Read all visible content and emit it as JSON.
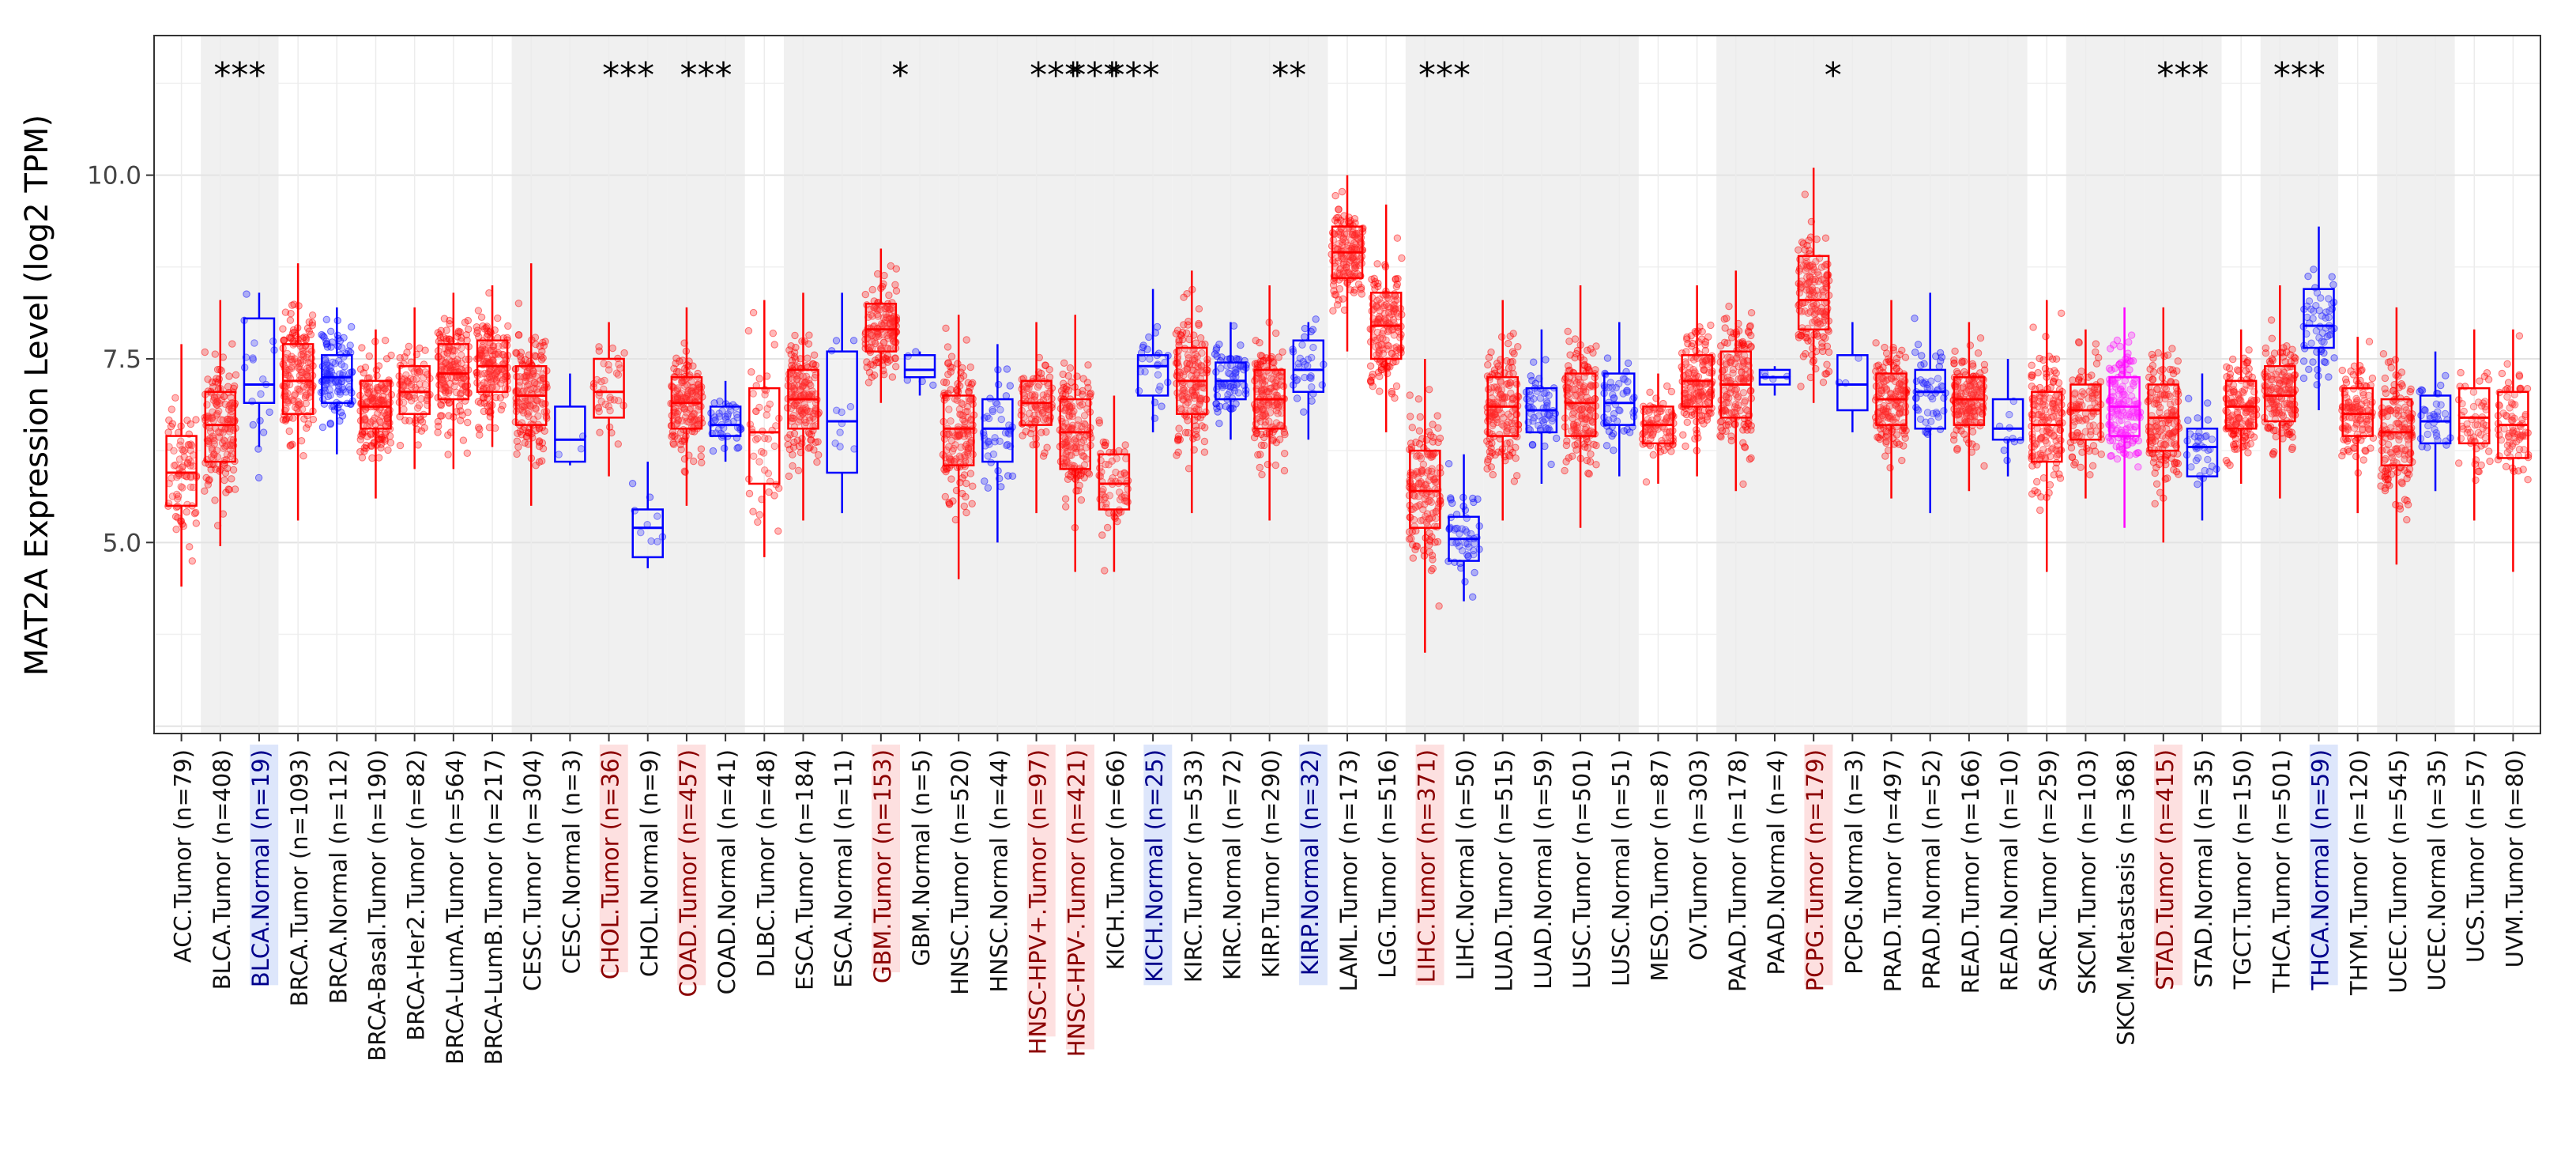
{
  "chart_data": {
    "type": "boxplot",
    "title": "",
    "ylabel": "MAT2A Expression Level (log2 TPM)",
    "xlabel": "",
    "ylim": [
      2.4,
      11.9
    ],
    "yticks": [
      5.0,
      7.5,
      10.0
    ],
    "ytick_labels": [
      "5.0",
      "7.5",
      "10.0"
    ],
    "grid": true,
    "colors": {
      "tumor": "#ff0000",
      "normal": "#0000ff",
      "metastasis": "#ff00ff",
      "shade": "#f0f0f0",
      "highlight_tumor": "#fde0e0",
      "highlight_normal": "#dde6fb",
      "label_red": "#8b0000",
      "label_blue": "#00008b"
    },
    "categories": [
      {
        "label": "ACC.Tumor (n=79)",
        "kind": "tumor",
        "n": 79,
        "q1": 5.5,
        "median": 5.95,
        "q3": 6.45,
        "wlo": 4.4,
        "whi": 7.7,
        "sig": "",
        "hl": ""
      },
      {
        "label": "BLCA.Tumor (n=408)",
        "kind": "tumor",
        "n": 408,
        "q1": 6.1,
        "median": 6.6,
        "q3": 7.05,
        "wlo": 4.95,
        "whi": 8.3,
        "sig": "***",
        "hl": ""
      },
      {
        "label": "BLCA.Normal (n=19)",
        "kind": "normal",
        "n": 19,
        "q1": 6.9,
        "median": 7.15,
        "q3": 8.05,
        "wlo": 6.3,
        "whi": 8.4,
        "sig": "",
        "hl": "normal"
      },
      {
        "label": "BRCA.Tumor (n=1093)",
        "kind": "tumor",
        "n": 1093,
        "q1": 6.75,
        "median": 7.2,
        "q3": 7.7,
        "wlo": 5.3,
        "whi": 8.8,
        "sig": "",
        "hl": ""
      },
      {
        "label": "BRCA.Normal (n=112)",
        "kind": "normal",
        "n": 112,
        "q1": 6.9,
        "median": 7.25,
        "q3": 7.55,
        "wlo": 6.2,
        "whi": 8.2,
        "sig": "",
        "hl": ""
      },
      {
        "label": "BRCA-Basal.Tumor (n=190)",
        "kind": "tumor",
        "n": 190,
        "q1": 6.55,
        "median": 6.85,
        "q3": 7.2,
        "wlo": 5.6,
        "whi": 7.9,
        "sig": "",
        "hl": ""
      },
      {
        "label": "BRCA-Her2.Tumor (n=82)",
        "kind": "tumor",
        "n": 82,
        "q1": 6.75,
        "median": 7.05,
        "q3": 7.4,
        "wlo": 6.0,
        "whi": 8.2,
        "sig": "",
        "hl": ""
      },
      {
        "label": "BRCA-LumA.Tumor (n=564)",
        "kind": "tumor",
        "n": 564,
        "q1": 6.95,
        "median": 7.3,
        "q3": 7.7,
        "wlo": 6.0,
        "whi": 8.4,
        "sig": "",
        "hl": ""
      },
      {
        "label": "BRCA-LumB.Tumor (n=217)",
        "kind": "tumor",
        "n": 217,
        "q1": 7.05,
        "median": 7.4,
        "q3": 7.75,
        "wlo": 6.3,
        "whi": 8.5,
        "sig": "",
        "hl": ""
      },
      {
        "label": "CESC.Tumor (n=304)",
        "kind": "tumor",
        "n": 304,
        "q1": 6.6,
        "median": 7.0,
        "q3": 7.4,
        "wlo": 5.5,
        "whi": 8.8,
        "sig": "",
        "hl": ""
      },
      {
        "label": "CESC.Normal (n=3)",
        "kind": "normal",
        "n": 3,
        "q1": 6.1,
        "median": 6.4,
        "q3": 6.85,
        "wlo": 6.05,
        "whi": 7.3,
        "sig": "",
        "hl": ""
      },
      {
        "label": "CHOL.Tumor (n=36)",
        "kind": "tumor",
        "n": 36,
        "q1": 6.7,
        "median": 7.05,
        "q3": 7.5,
        "wlo": 5.9,
        "whi": 8.0,
        "sig": "***",
        "hl": "tumor"
      },
      {
        "label": "CHOL.Normal (n=9)",
        "kind": "normal",
        "n": 9,
        "q1": 4.8,
        "median": 5.2,
        "q3": 5.45,
        "wlo": 4.65,
        "whi": 6.1,
        "sig": "",
        "hl": ""
      },
      {
        "label": "COAD.Tumor (n=457)",
        "kind": "tumor",
        "n": 457,
        "q1": 6.55,
        "median": 6.9,
        "q3": 7.25,
        "wlo": 5.5,
        "whi": 8.2,
        "sig": "***",
        "hl": "tumor"
      },
      {
        "label": "COAD.Normal (n=41)",
        "kind": "normal",
        "n": 41,
        "q1": 6.45,
        "median": 6.6,
        "q3": 6.85,
        "wlo": 6.1,
        "whi": 7.2,
        "sig": "",
        "hl": ""
      },
      {
        "label": "DLBC.Tumor (n=48)",
        "kind": "tumor",
        "n": 48,
        "q1": 5.8,
        "median": 6.5,
        "q3": 7.1,
        "wlo": 4.8,
        "whi": 8.3,
        "sig": "",
        "hl": ""
      },
      {
        "label": "ESCA.Tumor (n=184)",
        "kind": "tumor",
        "n": 184,
        "q1": 6.55,
        "median": 6.95,
        "q3": 7.35,
        "wlo": 5.3,
        "whi": 8.4,
        "sig": "",
        "hl": ""
      },
      {
        "label": "ESCA.Normal (n=11)",
        "kind": "normal",
        "n": 11,
        "q1": 5.95,
        "median": 6.65,
        "q3": 7.6,
        "wlo": 5.4,
        "whi": 8.4,
        "sig": "",
        "hl": ""
      },
      {
        "label": "GBM.Tumor (n=153)",
        "kind": "tumor",
        "n": 153,
        "q1": 7.6,
        "median": 7.9,
        "q3": 8.25,
        "wlo": 6.9,
        "whi": 9.0,
        "sig": "*",
        "hl": "tumor"
      },
      {
        "label": "GBM.Normal (n=5)",
        "kind": "normal",
        "n": 5,
        "q1": 7.25,
        "median": 7.35,
        "q3": 7.55,
        "wlo": 7.0,
        "whi": 7.6,
        "sig": "",
        "hl": ""
      },
      {
        "label": "HNSC.Tumor (n=520)",
        "kind": "tumor",
        "n": 520,
        "q1": 6.05,
        "median": 6.55,
        "q3": 7.0,
        "wlo": 4.5,
        "whi": 8.1,
        "sig": "",
        "hl": ""
      },
      {
        "label": "HNSC.Normal (n=44)",
        "kind": "normal",
        "n": 44,
        "q1": 6.1,
        "median": 6.55,
        "q3": 6.95,
        "wlo": 5.0,
        "whi": 7.7,
        "sig": "",
        "hl": ""
      },
      {
        "label": "HNSC-HPV+.Tumor (n=97)",
        "kind": "tumor",
        "n": 97,
        "q1": 6.6,
        "median": 6.9,
        "q3": 7.2,
        "wlo": 5.4,
        "whi": 8.0,
        "sig": "***",
        "hl": "tumor"
      },
      {
        "label": "HNSC-HPV-.Tumor (n=421)",
        "kind": "tumor",
        "n": 421,
        "q1": 6.0,
        "median": 6.5,
        "q3": 6.95,
        "wlo": 4.6,
        "whi": 8.1,
        "sig": "***",
        "hl": "tumor"
      },
      {
        "label": "KICH.Tumor (n=66)",
        "kind": "tumor",
        "n": 66,
        "q1": 5.45,
        "median": 5.8,
        "q3": 6.2,
        "wlo": 4.6,
        "whi": 7.0,
        "sig": "***",
        "hl": ""
      },
      {
        "label": "KICH.Normal (n=25)",
        "kind": "normal",
        "n": 25,
        "q1": 7.0,
        "median": 7.4,
        "q3": 7.55,
        "wlo": 6.5,
        "whi": 8.45,
        "sig": "",
        "hl": "normal"
      },
      {
        "label": "KIRC.Tumor (n=533)",
        "kind": "tumor",
        "n": 533,
        "q1": 6.75,
        "median": 7.2,
        "q3": 7.65,
        "wlo": 5.4,
        "whi": 8.7,
        "sig": "",
        "hl": ""
      },
      {
        "label": "KIRC.Normal (n=72)",
        "kind": "normal",
        "n": 72,
        "q1": 6.95,
        "median": 7.2,
        "q3": 7.45,
        "wlo": 6.4,
        "whi": 8.0,
        "sig": "",
        "hl": ""
      },
      {
        "label": "KIRP.Tumor (n=290)",
        "kind": "tumor",
        "n": 290,
        "q1": 6.55,
        "median": 6.95,
        "q3": 7.35,
        "wlo": 5.3,
        "whi": 8.5,
        "sig": "**",
        "hl": ""
      },
      {
        "label": "KIRP.Normal (n=32)",
        "kind": "normal",
        "n": 32,
        "q1": 7.05,
        "median": 7.35,
        "q3": 7.75,
        "wlo": 6.4,
        "whi": 8.0,
        "sig": "",
        "hl": "normal"
      },
      {
        "label": "LAML.Tumor (n=173)",
        "kind": "tumor",
        "n": 173,
        "q1": 8.6,
        "median": 8.95,
        "q3": 9.3,
        "wlo": 7.6,
        "whi": 10.0,
        "sig": "",
        "hl": ""
      },
      {
        "label": "LGG.Tumor (n=516)",
        "kind": "tumor",
        "n": 516,
        "q1": 7.5,
        "median": 7.95,
        "q3": 8.4,
        "wlo": 6.5,
        "whi": 9.6,
        "sig": "",
        "hl": ""
      },
      {
        "label": "LIHC.Tumor (n=371)",
        "kind": "tumor",
        "n": 371,
        "q1": 5.2,
        "median": 5.7,
        "q3": 6.25,
        "wlo": 3.5,
        "whi": 7.5,
        "sig": "***",
        "hl": "tumor"
      },
      {
        "label": "LIHC.Normal (n=50)",
        "kind": "normal",
        "n": 50,
        "q1": 4.75,
        "median": 5.05,
        "q3": 5.35,
        "wlo": 4.2,
        "whi": 6.2,
        "sig": "",
        "hl": ""
      },
      {
        "label": "LUAD.Tumor (n=515)",
        "kind": "tumor",
        "n": 515,
        "q1": 6.45,
        "median": 6.85,
        "q3": 7.25,
        "wlo": 5.3,
        "whi": 8.3,
        "sig": "",
        "hl": ""
      },
      {
        "label": "LUAD.Normal (n=59)",
        "kind": "normal",
        "n": 59,
        "q1": 6.5,
        "median": 6.8,
        "q3": 7.1,
        "wlo": 5.8,
        "whi": 7.9,
        "sig": "",
        "hl": ""
      },
      {
        "label": "LUSC.Tumor (n=501)",
        "kind": "tumor",
        "n": 501,
        "q1": 6.45,
        "median": 6.9,
        "q3": 7.3,
        "wlo": 5.2,
        "whi": 8.5,
        "sig": "",
        "hl": ""
      },
      {
        "label": "LUSC.Normal (n=51)",
        "kind": "normal",
        "n": 51,
        "q1": 6.6,
        "median": 6.9,
        "q3": 7.3,
        "wlo": 5.9,
        "whi": 8.0,
        "sig": "",
        "hl": ""
      },
      {
        "label": "MESO.Tumor (n=87)",
        "kind": "tumor",
        "n": 87,
        "q1": 6.35,
        "median": 6.6,
        "q3": 6.85,
        "wlo": 5.8,
        "whi": 7.3,
        "sig": "",
        "hl": ""
      },
      {
        "label": "OV.Tumor (n=303)",
        "kind": "tumor",
        "n": 303,
        "q1": 6.85,
        "median": 7.2,
        "q3": 7.55,
        "wlo": 5.9,
        "whi": 8.5,
        "sig": "",
        "hl": ""
      },
      {
        "label": "PAAD.Tumor (n=178)",
        "kind": "tumor",
        "n": 178,
        "q1": 6.7,
        "median": 7.15,
        "q3": 7.6,
        "wlo": 5.7,
        "whi": 8.7,
        "sig": "",
        "hl": ""
      },
      {
        "label": "PAAD.Normal (n=4)",
        "kind": "normal",
        "n": 4,
        "q1": 7.15,
        "median": 7.25,
        "q3": 7.35,
        "wlo": 7.0,
        "whi": 7.4,
        "sig": "",
        "hl": ""
      },
      {
        "label": "PCPG.Tumor (n=179)",
        "kind": "tumor",
        "n": 179,
        "q1": 7.9,
        "median": 8.3,
        "q3": 8.9,
        "wlo": 6.9,
        "whi": 10.1,
        "sig": "*",
        "hl": "tumor"
      },
      {
        "label": "PCPG.Normal (n=3)",
        "kind": "normal",
        "n": 3,
        "q1": 6.8,
        "median": 7.15,
        "q3": 7.55,
        "wlo": 6.5,
        "whi": 8.0,
        "sig": "",
        "hl": ""
      },
      {
        "label": "PRAD.Tumor (n=497)",
        "kind": "tumor",
        "n": 497,
        "q1": 6.6,
        "median": 6.95,
        "q3": 7.3,
        "wlo": 5.6,
        "whi": 8.3,
        "sig": "",
        "hl": ""
      },
      {
        "label": "PRAD.Normal (n=52)",
        "kind": "normal",
        "n": 52,
        "q1": 6.55,
        "median": 7.05,
        "q3": 7.35,
        "wlo": 5.4,
        "whi": 8.4,
        "sig": "",
        "hl": ""
      },
      {
        "label": "READ.Tumor (n=166)",
        "kind": "tumor",
        "n": 166,
        "q1": 6.6,
        "median": 6.95,
        "q3": 7.25,
        "wlo": 5.7,
        "whi": 8.0,
        "sig": "",
        "hl": ""
      },
      {
        "label": "READ.Normal (n=10)",
        "kind": "normal",
        "n": 10,
        "q1": 6.4,
        "median": 6.55,
        "q3": 6.95,
        "wlo": 5.9,
        "whi": 7.5,
        "sig": "",
        "hl": ""
      },
      {
        "label": "SARC.Tumor (n=259)",
        "kind": "tumor",
        "n": 259,
        "q1": 6.1,
        "median": 6.6,
        "q3": 7.05,
        "wlo": 4.6,
        "whi": 8.3,
        "sig": "",
        "hl": ""
      },
      {
        "label": "SKCM.Tumor (n=103)",
        "kind": "tumor",
        "n": 103,
        "q1": 6.4,
        "median": 6.8,
        "q3": 7.15,
        "wlo": 5.6,
        "whi": 7.9,
        "sig": "",
        "hl": ""
      },
      {
        "label": "SKCM.Metastasis (n=368)",
        "kind": "metastasis",
        "n": 368,
        "q1": 6.45,
        "median": 6.85,
        "q3": 7.25,
        "wlo": 5.2,
        "whi": 8.2,
        "sig": "",
        "hl": ""
      },
      {
        "label": "STAD.Tumor (n=415)",
        "kind": "tumor",
        "n": 415,
        "q1": 6.25,
        "median": 6.7,
        "q3": 7.15,
        "wlo": 5.0,
        "whi": 8.2,
        "sig": "***",
        "hl": "tumor"
      },
      {
        "label": "STAD.Normal (n=35)",
        "kind": "normal",
        "n": 35,
        "q1": 5.9,
        "median": 6.3,
        "q3": 6.55,
        "wlo": 5.3,
        "whi": 7.3,
        "sig": "",
        "hl": ""
      },
      {
        "label": "TGCT.Tumor (n=150)",
        "kind": "tumor",
        "n": 150,
        "q1": 6.55,
        "median": 6.85,
        "q3": 7.2,
        "wlo": 5.8,
        "whi": 7.9,
        "sig": "",
        "hl": ""
      },
      {
        "label": "THCA.Tumor (n=501)",
        "kind": "tumor",
        "n": 501,
        "q1": 6.65,
        "median": 7.0,
        "q3": 7.4,
        "wlo": 5.6,
        "whi": 8.5,
        "sig": "***",
        "hl": ""
      },
      {
        "label": "THCA.Normal (n=59)",
        "kind": "normal",
        "n": 59,
        "q1": 7.65,
        "median": 7.95,
        "q3": 8.45,
        "wlo": 6.8,
        "whi": 9.3,
        "sig": "",
        "hl": "normal"
      },
      {
        "label": "THYM.Tumor (n=120)",
        "kind": "tumor",
        "n": 120,
        "q1": 6.45,
        "median": 6.75,
        "q3": 7.1,
        "wlo": 5.4,
        "whi": 7.8,
        "sig": "",
        "hl": ""
      },
      {
        "label": "UCEC.Tumor (n=545)",
        "kind": "tumor",
        "n": 545,
        "q1": 6.05,
        "median": 6.5,
        "q3": 6.95,
        "wlo": 4.7,
        "whi": 8.2,
        "sig": "",
        "hl": ""
      },
      {
        "label": "UCEC.Normal (n=35)",
        "kind": "normal",
        "n": 35,
        "q1": 6.35,
        "median": 6.65,
        "q3": 7.0,
        "wlo": 5.7,
        "whi": 7.6,
        "sig": "",
        "hl": ""
      },
      {
        "label": "UCS.Tumor (n=57)",
        "kind": "tumor",
        "n": 57,
        "q1": 6.35,
        "median": 6.7,
        "q3": 7.1,
        "wlo": 5.3,
        "whi": 7.9,
        "sig": "",
        "hl": ""
      },
      {
        "label": "UVM.Tumor (n=80)",
        "kind": "tumor",
        "n": 80,
        "q1": 6.15,
        "median": 6.6,
        "q3": 7.05,
        "wlo": 4.6,
        "whi": 7.9,
        "sig": "",
        "hl": ""
      }
    ],
    "shaded_groups": [
      "BLCA",
      "CESC",
      "CHOL",
      "COAD",
      "ESCA",
      "GBM",
      "HNSC",
      "KICH",
      "KIRC",
      "KIRP",
      "LIHC",
      "LUAD",
      "LUSC",
      "PAAD",
      "PCPG",
      "PRAD",
      "READ",
      "SKCM",
      "STAD",
      "THCA",
      "UCEC"
    ]
  }
}
